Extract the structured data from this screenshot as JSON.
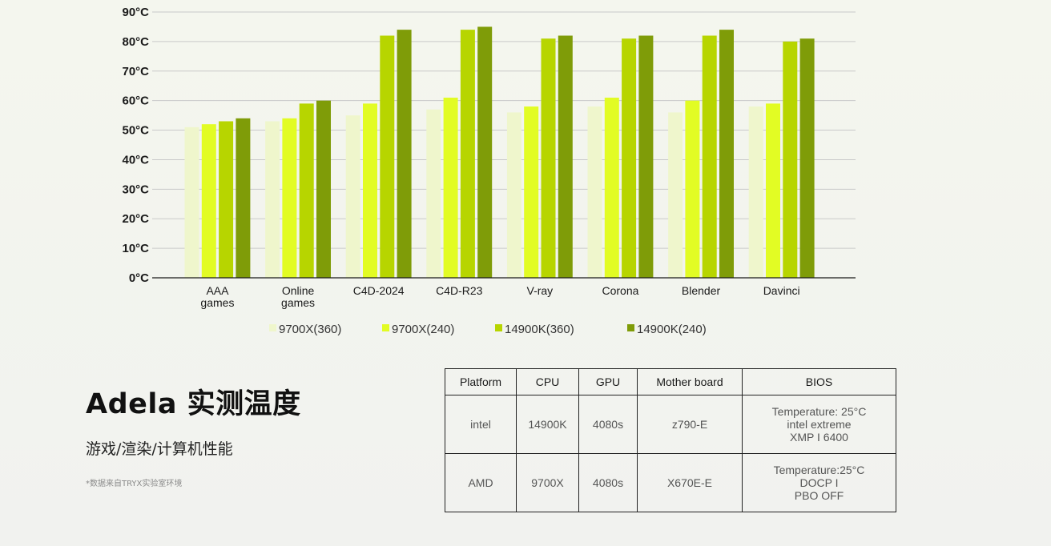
{
  "chart_data": {
    "type": "bar",
    "title": "",
    "xlabel": "",
    "ylabel": "",
    "ylim": [
      0,
      90
    ],
    "yticks": [
      "0°C",
      "10°C",
      "20°C",
      "30°C",
      "40°C",
      "50°C",
      "60°C",
      "70°C",
      "80°C",
      "90°C"
    ],
    "grid": true,
    "legend_position": "bottom",
    "categories": [
      "AAA games",
      "Online games",
      "C4D-2024",
      "C4D-R23",
      "V-ray",
      "Corona",
      "Blender",
      "Davinci"
    ],
    "category_lines": [
      [
        "AAA",
        "games"
      ],
      [
        "Online",
        "games"
      ],
      [
        "C4D-2024"
      ],
      [
        "C4D-R23"
      ],
      [
        "V-ray"
      ],
      [
        "Corona"
      ],
      [
        "Blender"
      ],
      [
        "Davinci"
      ]
    ],
    "series": [
      {
        "name": "9700X(360)",
        "color": "#eff6cc",
        "values": [
          51,
          53,
          55,
          57,
          56,
          58,
          56,
          58
        ]
      },
      {
        "name": "9700X(240)",
        "color": "#e2fc24",
        "values": [
          52,
          54,
          59,
          61,
          58,
          61,
          60,
          59
        ]
      },
      {
        "name": "14900K(360)",
        "color": "#b7d500",
        "values": [
          53,
          59,
          82,
          84,
          81,
          81,
          82,
          80
        ]
      },
      {
        "name": "14900K(240)",
        "color": "#7f9c08",
        "values": [
          54,
          60,
          84,
          85,
          82,
          82,
          84,
          81
        ]
      }
    ]
  },
  "text": {
    "headline": "Adela 实测温度",
    "subheadline": "游戏/渲染/计算机性能",
    "footnote": "*数据来自TRYX实验室环境"
  },
  "table": {
    "headers": [
      "Platform",
      "CPU",
      "GPU",
      "Mother board",
      "BIOS"
    ],
    "rows": [
      {
        "platform": "intel",
        "cpu": "14900K",
        "gpu": "4080s",
        "board": "z790-E",
        "bios": [
          "Temperature: 25°C",
          "intel extreme",
          "XMP I 6400"
        ]
      },
      {
        "platform": "AMD",
        "cpu": "9700X",
        "gpu": "4080s",
        "board": "X670E-E",
        "bios": [
          "Temperature:25°C",
          "DOCP I",
          "PBO OFF"
        ]
      }
    ]
  }
}
